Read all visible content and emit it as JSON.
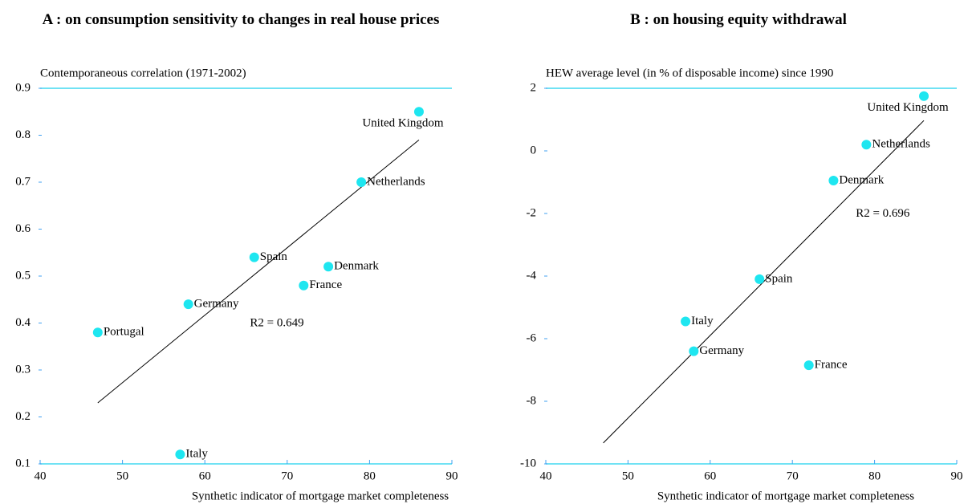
{
  "chart_data": [
    {
      "type": "scatter",
      "title": "A : on consumption sensitivity to changes in real house prices",
      "y_label": "Contemporaneous correlation (1971-2002)",
      "x_label": "Synthetic indicator of mortgage market completeness",
      "labels": [
        "United Kingdom",
        "Netherlands",
        "Spain",
        "Denmark",
        "France",
        "Germany",
        "Portugal",
        "Italy"
      ],
      "x": [
        86,
        79,
        66,
        75,
        72,
        58,
        47,
        57
      ],
      "values": [
        0.85,
        0.7,
        0.54,
        0.52,
        0.48,
        0.44,
        0.38,
        0.12
      ],
      "color": "#1ee6f0",
      "fit": {
        "x": [
          47,
          86
        ],
        "values": [
          0.23,
          0.79
        ],
        "color": "#000000"
      },
      "annotation": "R2 = 0.649",
      "xlim": [
        40,
        90
      ],
      "xticks": [
        40,
        50,
        60,
        70,
        80,
        90
      ],
      "ylim": [
        0.1,
        0.9
      ],
      "yticks": [
        0.1,
        0.2,
        0.3,
        0.4,
        0.5,
        0.6,
        0.7,
        0.8,
        0.9
      ],
      "axis_color": "#40d8f0"
    },
    {
      "type": "scatter",
      "title": "B : on housing equity withdrawal",
      "y_label": "HEW average level (in % of disposable income) since 1990",
      "x_label": "Synthetic indicator of mortgage market completeness",
      "labels": [
        "United Kingdom",
        "Netherlands",
        "Denmark",
        "Spain",
        "Italy",
        "Germany",
        "France"
      ],
      "x": [
        86,
        79,
        75,
        66,
        57,
        58,
        72
      ],
      "values": [
        1.75,
        0.2,
        -0.95,
        -4.1,
        -5.45,
        -6.4,
        -6.85
      ],
      "color": "#1ee6f0",
      "fit": {
        "x": [
          47,
          86
        ],
        "values": [
          -9.33,
          0.97
        ],
        "color": "#000000"
      },
      "annotation": "R2 = 0.696",
      "xlim": [
        40,
        90
      ],
      "xticks": [
        40,
        50,
        60,
        70,
        80,
        90
      ],
      "ylim": [
        -10,
        2
      ],
      "yticks": [
        -10,
        -8,
        -6,
        -4,
        -2,
        0,
        2
      ],
      "axis_color": "#40d8f0"
    }
  ]
}
